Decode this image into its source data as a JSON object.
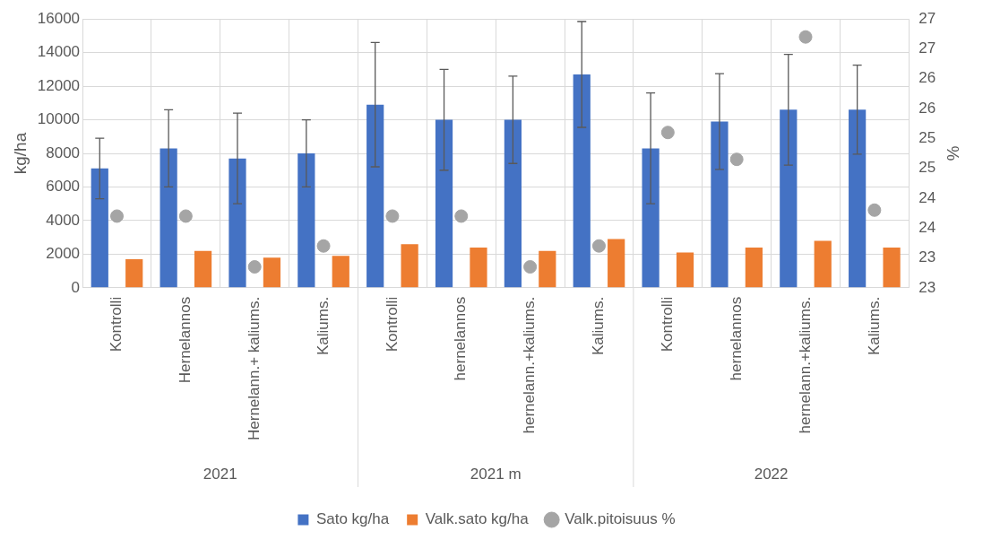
{
  "chart_data": {
    "type": "bar",
    "categories": [
      "Kontrolli",
      "Hernelannos",
      "Hernelann.+ kaliums.",
      "Kaliums.",
      "Kontrolli",
      "hernelannos",
      "hernelann.+kaliums.",
      "Kaliums.",
      "Kontrolli",
      "hernelannos",
      "hernelann.+kaliums.",
      "Kaliums."
    ],
    "series": [
      {
        "name": "Sato kg/ha",
        "color": "#4472c4",
        "values": [
          7100,
          8300,
          7700,
          8000,
          10900,
          10000,
          10000,
          12700,
          8300,
          9900,
          10600,
          10600
        ],
        "errors": [
          1800,
          2300,
          2700,
          2000,
          3700,
          3000,
          2600,
          3150,
          3300,
          2850,
          3300,
          2650
        ]
      },
      {
        "name": "Valk.sato kg/ha",
        "color": "#ed7d31",
        "values": [
          1700,
          2200,
          1800,
          1900,
          2600,
          2400,
          2200,
          2900,
          2100,
          2400,
          2800,
          2400
        ]
      },
      {
        "name": "Valk.pitoisuus %",
        "type": "scatter",
        "axis": "y2",
        "color": "#a5a5a5",
        "values": [
          23.7,
          23.7,
          22.85,
          23.2,
          23.7,
          23.7,
          22.85,
          23.2,
          25.1,
          24.65,
          26.7,
          23.8
        ]
      }
    ],
    "ylabel": "kg/ha",
    "y2label": "%",
    "ylim": [
      0,
      16000
    ],
    "yticks": [
      0,
      2000,
      4000,
      6000,
      8000,
      10000,
      12000,
      14000,
      16000
    ],
    "y2lim": [
      22.5,
      27
    ],
    "y2ticks": [
      {
        "value": 22.5,
        "label": "23"
      },
      {
        "value": 23,
        "label": "23"
      },
      {
        "value": 23.5,
        "label": "24"
      },
      {
        "value": 24,
        "label": "24"
      },
      {
        "value": 24.5,
        "label": "25"
      },
      {
        "value": 25,
        "label": "25"
      },
      {
        "value": 25.5,
        "label": "26"
      },
      {
        "value": 26,
        "label": "26"
      },
      {
        "value": 26.5,
        "label": "27"
      },
      {
        "value": 27,
        "label": "27"
      }
    ],
    "annotations": [
      "2021",
      "2021 m",
      "2022"
    ],
    "grid": true,
    "legend": "bottom",
    "marker": "circle"
  }
}
